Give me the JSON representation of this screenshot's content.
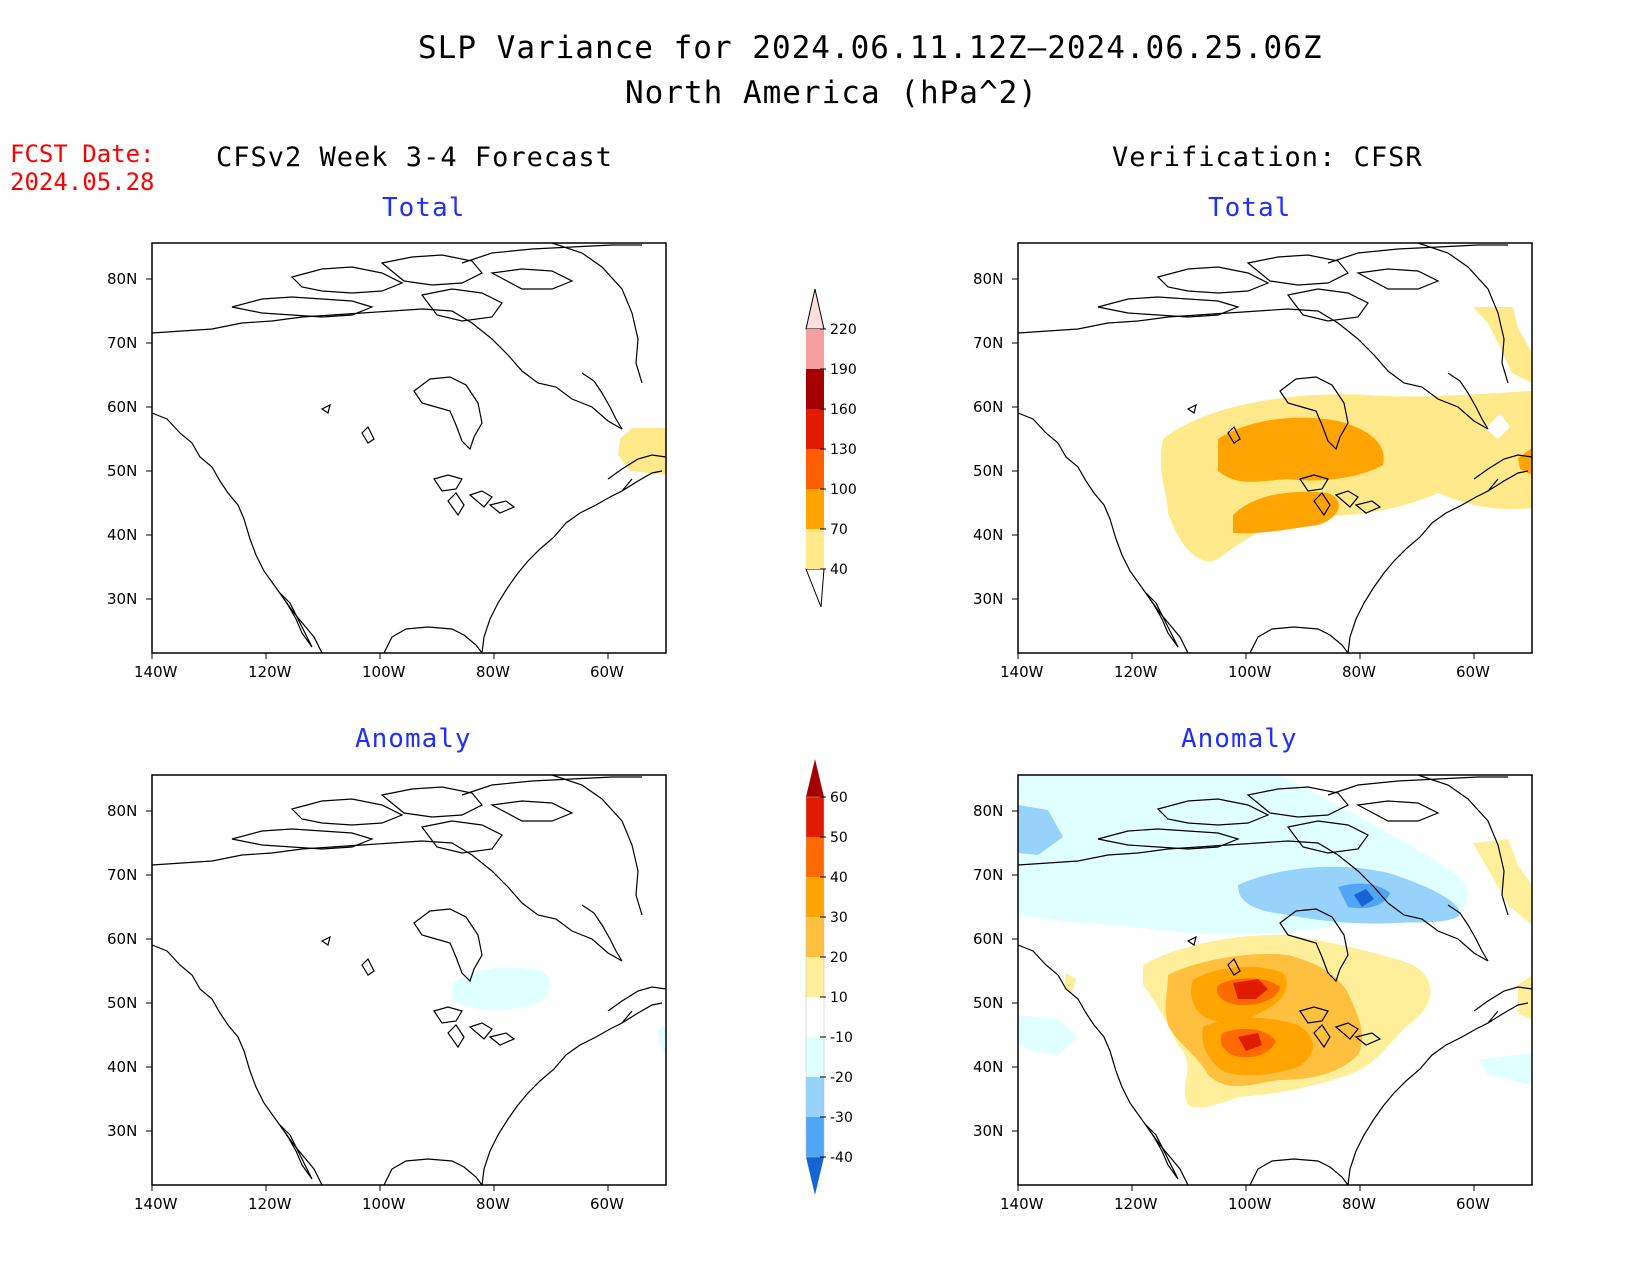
{
  "title": {
    "line1": "SLP Variance for 2024.06.11.12Z—2024.06.25.06Z",
    "line2": "North America (hPa^2)"
  },
  "fcst": {
    "label": "FCST Date:",
    "date": "2024.05.28"
  },
  "headers": {
    "left": "CFSv2 Week 3-4 Forecast",
    "right": "Verification: CFSR"
  },
  "panels": {
    "fc_total": {
      "title": "Total"
    },
    "vf_total": {
      "title": "Total"
    },
    "fc_anom": {
      "title": "Anomaly"
    },
    "vf_anom": {
      "title": "Anomaly"
    }
  },
  "axes": {
    "lon_labels": [
      "140W",
      "120W",
      "100W",
      "80W",
      "60W"
    ],
    "lat_labels": [
      "80N",
      "70N",
      "60N",
      "50N",
      "40N",
      "30N"
    ]
  },
  "colorbars": {
    "total": {
      "levels": [
        "40",
        "70",
        "100",
        "130",
        "160",
        "190",
        "220"
      ],
      "colors": [
        "#ffe98a",
        "#ffa400",
        "#ff5f00",
        "#e01b00",
        "#a50000",
        "#f3a0a0",
        "#ffdede"
      ]
    },
    "anomaly": {
      "levels": [
        "60",
        "50",
        "40",
        "30",
        "20",
        "10",
        "-10",
        "-20",
        "-30",
        "-40"
      ],
      "colors": [
        "#a50000",
        "#e01b00",
        "#ff6a00",
        "#ffa400",
        "#ffc040",
        "#ffef9a",
        "#ffffff",
        "#e0ffff",
        "#96d2fa",
        "#50a5f5",
        "#1464d2"
      ]
    }
  },
  "chart_data": [
    {
      "type": "heatmap",
      "panel": "CFSv2 Week 3-4 Forecast / Total",
      "units": "hPa^2",
      "lon_range": [
        "140W",
        "50W"
      ],
      "lat_range": [
        "25N",
        "85N"
      ],
      "features": [
        {
          "region": "off Labrador / Newfoundland",
          "lat": "55N",
          "lon": "52W",
          "level": "40-70"
        }
      ]
    },
    {
      "type": "heatmap",
      "panel": "Verification: CFSR / Total",
      "units": "hPa^2",
      "features": [
        {
          "region": "central Canada to Great Lakes",
          "lat": "48N",
          "lon": "90W",
          "level": "40-70"
        },
        {
          "region": "Manitoba / Hudson Bay",
          "lat": "53N",
          "lon": "95W",
          "level": "70-100"
        },
        {
          "region": "northern Great Plains",
          "lat": "44N",
          "lon": "98W",
          "level": "70-100"
        },
        {
          "region": "Labrador / Greenland coast",
          "lat": "60N",
          "lon": "55W",
          "level": "40-70"
        }
      ]
    },
    {
      "type": "heatmap",
      "panel": "CFSv2 Week 3-4 Forecast / Anomaly",
      "units": "hPa^2",
      "features": [
        {
          "region": "James Bay",
          "lat": "52N",
          "lon": "82W",
          "level": "-10 to -20"
        }
      ]
    },
    {
      "type": "heatmap",
      "panel": "Verification: CFSR / Anomaly",
      "units": "hPa^2",
      "features": [
        {
          "region": "Canadian Arctic Archipelago",
          "lat": "68N",
          "lon": "85W",
          "level": "-20 to -40"
        },
        {
          "region": "Manitoba",
          "lat": "55N",
          "lon": "96W",
          "level": "40-60"
        },
        {
          "region": "northern Great Plains",
          "lat": "45N",
          "lon": "97W",
          "level": "40-60"
        }
      ]
    }
  ]
}
